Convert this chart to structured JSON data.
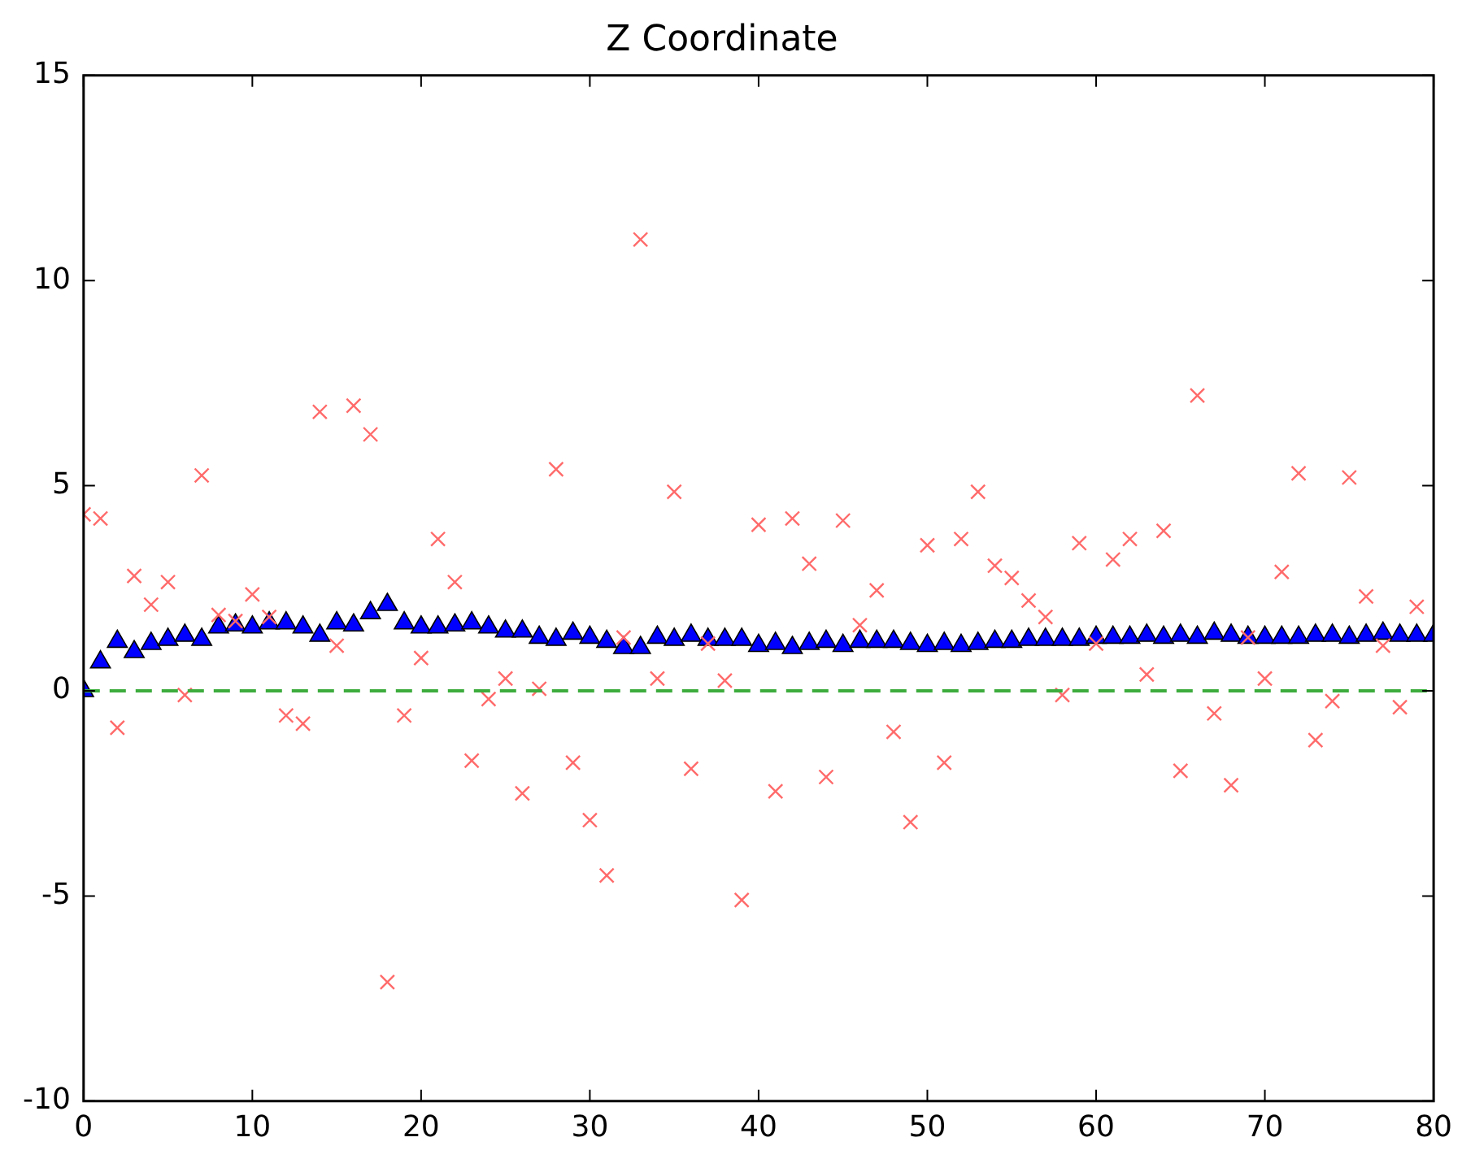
{
  "chart_data": {
    "type": "scatter",
    "title": "Z Coordinate",
    "x": [
      0,
      1,
      2,
      3,
      4,
      5,
      6,
      7,
      8,
      9,
      10,
      11,
      12,
      13,
      14,
      15,
      16,
      17,
      18,
      19,
      20,
      21,
      22,
      23,
      24,
      25,
      26,
      27,
      28,
      29,
      30,
      31,
      32,
      33,
      34,
      35,
      36,
      37,
      38,
      39,
      40,
      41,
      42,
      43,
      44,
      45,
      46,
      47,
      48,
      49,
      50,
      51,
      52,
      53,
      54,
      55,
      56,
      57,
      58,
      59,
      60,
      61,
      62,
      63,
      64,
      65,
      66,
      67,
      68,
      69,
      70,
      71,
      72,
      73,
      74,
      75,
      76,
      77,
      78,
      79,
      80
    ],
    "series": [
      {
        "color": "#ff6a6a",
        "marker": "cross",
        "values": [
          4.3,
          4.2,
          -0.9,
          2.8,
          2.1,
          2.65,
          -0.1,
          5.25,
          1.85,
          1.7,
          2.35,
          1.8,
          -0.6,
          -0.8,
          6.8,
          1.1,
          6.95,
          6.25,
          -7.1,
          -0.6,
          0.8,
          3.7,
          2.65,
          -1.7,
          -0.2,
          0.3,
          -2.5,
          0.05,
          5.4,
          -1.75,
          -3.15,
          -4.5,
          1.3,
          11.0,
          0.3,
          4.85,
          -1.9,
          1.15,
          0.25,
          -5.1,
          4.05,
          -2.45,
          4.2,
          3.1,
          -2.1,
          4.15,
          1.6,
          2.45,
          -1.0,
          -3.2,
          3.55,
          -1.75,
          3.7,
          4.85,
          3.05,
          2.75,
          2.2,
          1.8,
          -0.1,
          3.6,
          1.15,
          3.2,
          3.7,
          0.4,
          3.9,
          -1.95,
          7.2,
          -0.55,
          -2.3,
          1.3,
          0.3,
          2.9,
          5.3,
          -1.2,
          -0.25,
          5.2,
          2.3,
          1.1,
          -0.4,
          2.05,
          null
        ]
      },
      {
        "color": "#0000ff",
        "marker": "triangle",
        "values": [
          0,
          0.7,
          1.2,
          0.95,
          1.15,
          1.25,
          1.35,
          1.25,
          1.55,
          1.6,
          1.55,
          1.65,
          1.65,
          1.55,
          1.35,
          1.65,
          1.6,
          1.9,
          2.1,
          1.65,
          1.55,
          1.55,
          1.6,
          1.65,
          1.55,
          1.45,
          1.45,
          1.3,
          1.25,
          1.4,
          1.3,
          1.2,
          1.05,
          1.05,
          1.3,
          1.25,
          1.35,
          1.25,
          1.25,
          1.25,
          1.1,
          1.15,
          1.05,
          1.15,
          1.2,
          1.1,
          1.2,
          1.2,
          1.2,
          1.15,
          1.1,
          1.15,
          1.1,
          1.15,
          1.2,
          1.2,
          1.25,
          1.25,
          1.25,
          1.25,
          1.3,
          1.3,
          1.3,
          1.35,
          1.3,
          1.35,
          1.3,
          1.4,
          1.35,
          1.3,
          1.3,
          1.3,
          1.3,
          1.35,
          1.35,
          1.3,
          1.35,
          1.4,
          1.35,
          1.35,
          1.35
        ]
      }
    ],
    "xlim": [
      0,
      80
    ],
    "xticks": [
      0,
      10,
      20,
      30,
      40,
      50,
      60,
      70,
      80
    ],
    "ylim": [
      -10,
      15
    ],
    "yticks": [
      -10,
      -5,
      0,
      5,
      10,
      15
    ],
    "ref_lines": [
      {
        "axis": "y",
        "value": 0,
        "color": "#3cac3c",
        "line_style": "dashed"
      }
    ],
    "grid": false,
    "legend": false
  }
}
